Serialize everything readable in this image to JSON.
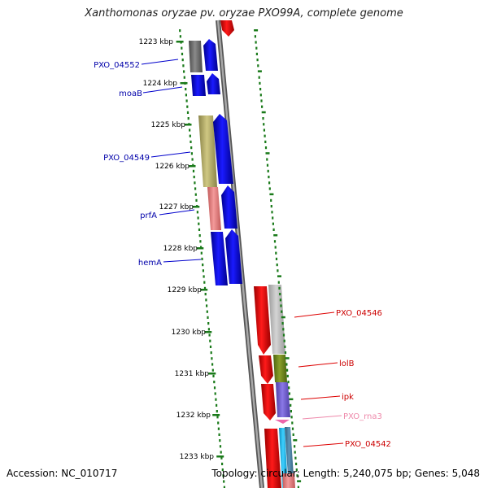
{
  "title": "Xanthomonas oryzae pv. oryzae PXO99A, complete genome",
  "footer": {
    "accession": "Accession: NC_010717",
    "summary": "Topology: circular; Length: 5,240,075 bp; Genes: 5,048"
  },
  "ruler": {
    "ticks": [
      "1223 kbp",
      "1224 kbp",
      "1225 kbp",
      "1226 kbp",
      "1227 kbp",
      "1228 kbp",
      "1229 kbp",
      "1230 kbp",
      "1231 kbp",
      "1232 kbp",
      "1233 kbp"
    ]
  },
  "gene_labels": {
    "left": [
      "PXO_04552",
      "moaB",
      "PXO_04549",
      "prfA",
      "hemA"
    ],
    "right": [
      "PXO_04546",
      "lolB",
      "ipk",
      "PXO_rna3",
      "PXO_04542"
    ]
  },
  "colors": {
    "forward_gene": "#0000ee",
    "reverse_gene": "#ee0000",
    "backbone": "#808080",
    "ruler": "#1a7a1a",
    "left_label": "#0000aa",
    "right_label": "#cc0000",
    "rna_label": "#ee88aa"
  }
}
